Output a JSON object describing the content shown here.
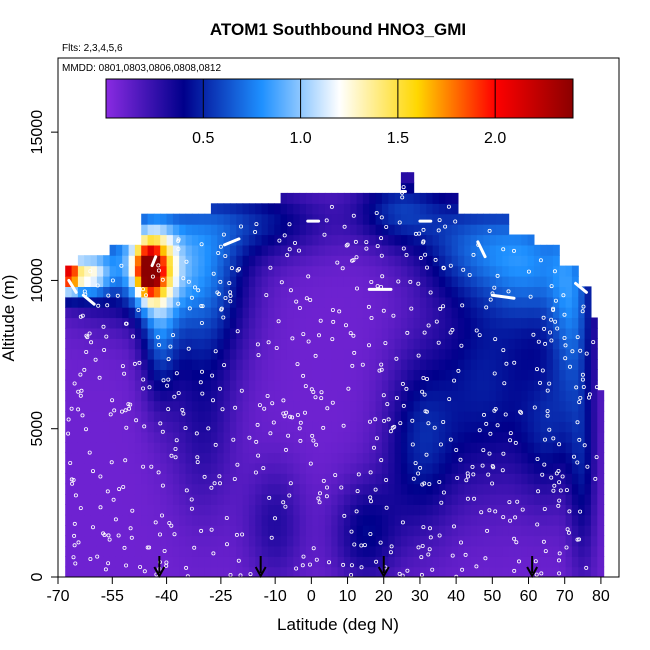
{
  "chart_data": {
    "type": "heatmap",
    "title": "ATOM1 Southbound HNO3_GMI",
    "flights_note": "Flts: 2,3,4,5,6",
    "dates_note": "MMDD: 0801,0803,0806,0808,0812",
    "xlabel": "Latitude (deg N)",
    "ylabel": "Altitude (m)",
    "xlim": [
      -70,
      85
    ],
    "ylim": [
      0,
      17500
    ],
    "x_ticks": [
      -70,
      -55,
      -40,
      -25,
      -10,
      0,
      10,
      20,
      30,
      40,
      50,
      60,
      70,
      80
    ],
    "y_ticks": [
      0,
      5000,
      10000,
      15000
    ],
    "colorbar": {
      "range": [
        0,
        2.4
      ],
      "ticks": [
        0.5,
        1.0,
        1.5,
        2.0
      ],
      "tick_labels": [
        "0.5",
        "1.0",
        "1.5",
        "2.0"
      ],
      "colors": [
        "#8a2be2",
        "#00008b",
        "#1e90ff",
        "#ffffff",
        "#ffd700",
        "#ff0000",
        "#8b0000"
      ]
    },
    "background_value": 0.08,
    "column_tops": [
      {
        "lat": -67.5,
        "top": 10500
      },
      {
        "lat": -64,
        "top": 10700
      },
      {
        "lat": -55,
        "top": 11000
      },
      {
        "lat": -47,
        "top": 12000
      },
      {
        "lat": -35,
        "top": 12000
      },
      {
        "lat": -27,
        "top": 12400
      },
      {
        "lat": -20,
        "top": 12400
      },
      {
        "lat": -8,
        "top": 12900
      },
      {
        "lat": 0,
        "top": 12900
      },
      {
        "lat": 10,
        "top": 12900
      },
      {
        "lat": 20,
        "top": 12900
      },
      {
        "lat": 24,
        "top": 13500
      },
      {
        "lat": 28,
        "top": 12900
      },
      {
        "lat": 40,
        "top": 12000
      },
      {
        "lat": 55,
        "top": 11500
      },
      {
        "lat": 62,
        "top": 11000
      },
      {
        "lat": 68,
        "top": 10500
      },
      {
        "lat": 74,
        "top": 9800
      },
      {
        "lat": 77,
        "top": 8500
      },
      {
        "lat": 79,
        "top": 6000
      },
      {
        "lat": 80,
        "top": 4800
      }
    ],
    "features": [
      {
        "lat": -48,
        "alt": 10800,
        "dlat": 22,
        "dalt": 1900,
        "value": 0.6
      },
      {
        "lat": -44,
        "alt": 10500,
        "dlat": 6,
        "dalt": 1200,
        "value": 1.0
      },
      {
        "lat": -45,
        "alt": 10300,
        "dlat": 3,
        "dalt": 700,
        "value": 1.2
      },
      {
        "lat": -62,
        "alt": 10200,
        "dlat": 6,
        "dalt": 700,
        "value": 0.85
      },
      {
        "lat": -67,
        "alt": 10200,
        "dlat": 2.5,
        "dalt": 600,
        "value": 1.4
      },
      {
        "lat": -42,
        "alt": 8500,
        "dlat": 5,
        "dalt": 2500,
        "value": 0.45
      },
      {
        "lat": -30,
        "alt": 9500,
        "dlat": 12,
        "dalt": 2800,
        "value": 0.45
      },
      {
        "lat": -15,
        "alt": 12000,
        "dlat": 20,
        "dalt": 1200,
        "value": 0.35
      },
      {
        "lat": 24,
        "alt": 12400,
        "dlat": 12,
        "dalt": 1200,
        "value": 0.42
      },
      {
        "lat": 45,
        "alt": 11200,
        "dlat": 16,
        "dalt": 1800,
        "value": 0.5
      },
      {
        "lat": 62,
        "alt": 10500,
        "dlat": 12,
        "dalt": 2200,
        "value": 0.5
      },
      {
        "lat": 72,
        "alt": 9000,
        "dlat": 6,
        "dalt": 3500,
        "value": 0.5
      },
      {
        "lat": 48,
        "alt": 6500,
        "dlat": 14,
        "dalt": 3500,
        "value": 0.38
      },
      {
        "lat": 30,
        "alt": 4500,
        "dlat": 10,
        "dalt": 3000,
        "value": 0.38
      },
      {
        "lat": 15,
        "alt": 1500,
        "dlat": 9,
        "dalt": 1800,
        "value": 0.32
      },
      {
        "lat": -10,
        "alt": 1800,
        "dlat": 8,
        "dalt": 2000,
        "value": 0.22
      },
      {
        "lat": -30,
        "alt": 5000,
        "dlat": 9,
        "dalt": 3000,
        "value": 0.2
      },
      {
        "lat": 75,
        "alt": 3500,
        "dlat": 4,
        "dalt": 3500,
        "value": 0.3
      },
      {
        "lat": 65,
        "alt": 5000,
        "dlat": 8,
        "dalt": 2500,
        "value": 0.32
      }
    ],
    "flight_track_segments": [
      {
        "lat0": -67,
        "alt0": 10000,
        "lat1": -65,
        "alt1": 9600
      },
      {
        "lat0": -63,
        "alt0": 9500,
        "lat1": -60,
        "alt1": 9200
      },
      {
        "lat0": -44,
        "alt0": 10500,
        "lat1": -43,
        "alt1": 10800
      },
      {
        "lat0": -24,
        "alt0": 11200,
        "lat1": -20,
        "alt1": 11400
      },
      {
        "lat0": -1,
        "alt0": 12000,
        "lat1": 2,
        "alt1": 12000
      },
      {
        "lat0": 16,
        "alt0": 9700,
        "lat1": 22,
        "alt1": 9700
      },
      {
        "lat0": 25,
        "alt0": 13000,
        "lat1": 26,
        "alt1": 13000
      },
      {
        "lat0": 30,
        "alt0": 12000,
        "lat1": 33,
        "alt1": 12000
      },
      {
        "lat0": 46,
        "alt0": 11300,
        "lat1": 48,
        "alt1": 10800
      },
      {
        "lat0": 50,
        "alt0": 9500,
        "lat1": 56,
        "alt1": 9400
      },
      {
        "lat0": 73,
        "alt0": 9900,
        "lat1": 76,
        "alt1": 9600
      }
    ],
    "sample_points_count": 650,
    "profile_markers_lat": [
      -42,
      -14,
      20,
      61
    ]
  }
}
